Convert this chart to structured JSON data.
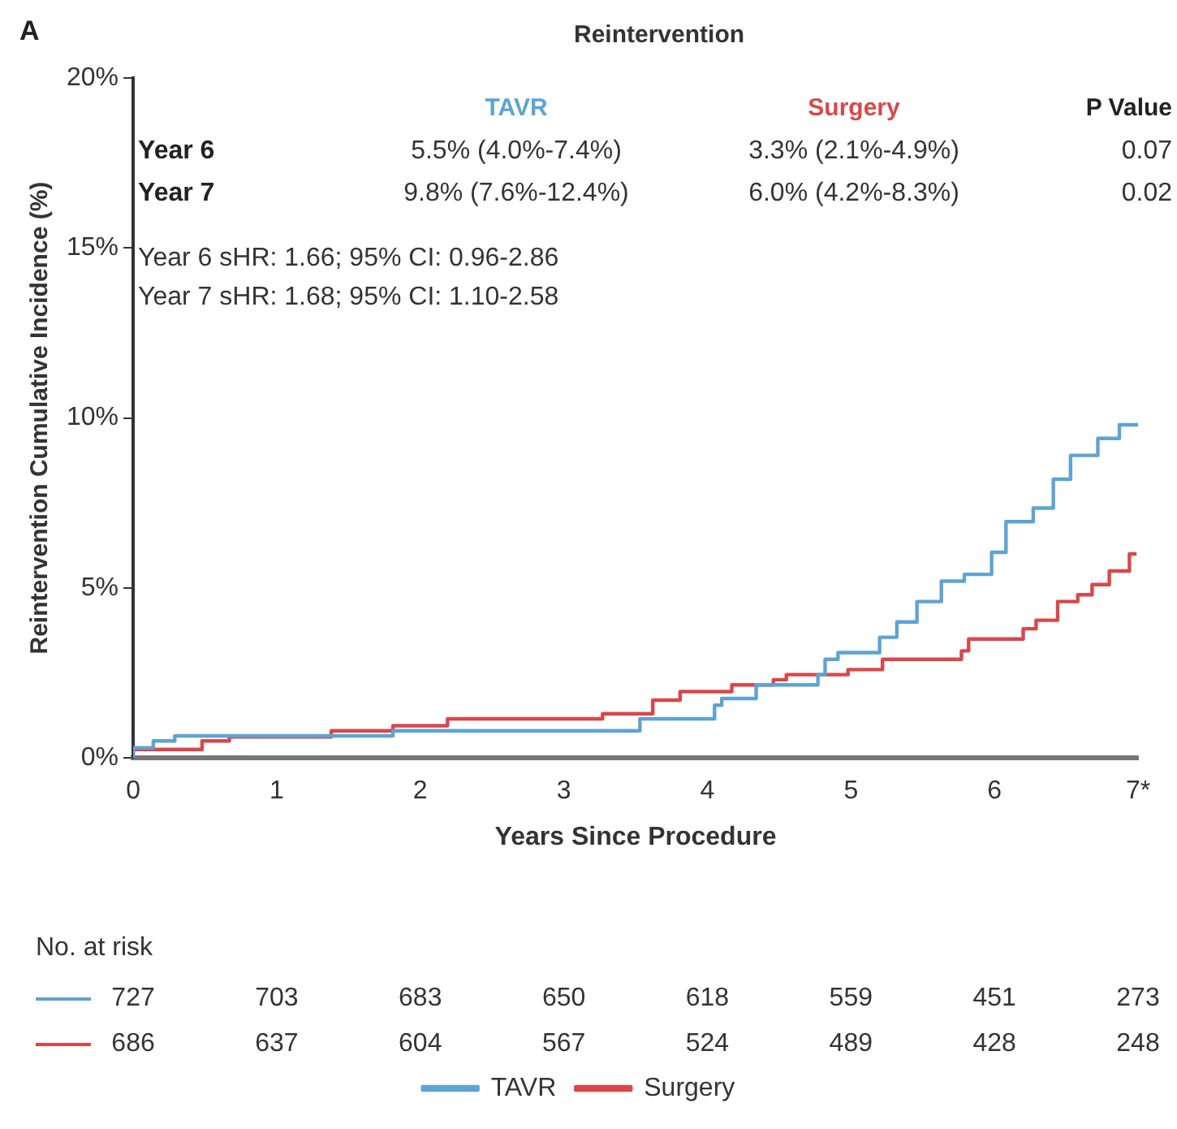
{
  "chart_data": {
    "type": "step",
    "title": "Reintervention",
    "xlabel": "Years Since Procedure",
    "ylabel": "Reintervention Cumulative Incidence (%)",
    "xlim": [
      0,
      7
    ],
    "xticks": [
      0,
      1,
      2,
      3,
      4,
      5,
      6,
      {
        "value": 7,
        "label": "7*"
      }
    ],
    "ylim": [
      0,
      20
    ],
    "yticks": [
      {
        "value": 0,
        "label": "0%"
      },
      {
        "value": 5,
        "label": "5%"
      },
      {
        "value": 10,
        "label": "10%"
      },
      {
        "value": 15,
        "label": "15%"
      },
      {
        "value": 20,
        "label": "20%"
      }
    ],
    "grid": false,
    "legend": "bottom",
    "marker": "none",
    "series": [
      {
        "name": "TAVR",
        "color": "#5ea3d3",
        "x": [
          0,
          0.14,
          0.29,
          1.81,
          3.53,
          4.05,
          4.1,
          4.34,
          4.77,
          4.82,
          4.91,
          5.2,
          5.32,
          5.46,
          5.63,
          5.79,
          5.98,
          6.08,
          6.27,
          6.41,
          6.53,
          6.72,
          6.87,
          7.0
        ],
        "values": [
          0,
          0.3,
          0.5,
          0.65,
          0.8,
          1.15,
          1.55,
          1.75,
          2.15,
          2.45,
          2.9,
          3.1,
          3.55,
          4.0,
          4.6,
          5.2,
          5.4,
          6.05,
          6.95,
          7.35,
          8.2,
          8.9,
          9.4,
          9.8
        ]
      },
      {
        "name": "Surgery",
        "color": "#d9474a",
        "x": [
          0,
          0.48,
          0.67,
          1.38,
          1.81,
          2.19,
          3.27,
          3.62,
          3.81,
          4.17,
          4.46,
          4.55,
          4.98,
          5.22,
          5.77,
          5.82,
          6.2,
          6.29,
          6.44,
          6.58,
          6.68,
          6.8,
          6.94,
          6.99
        ],
        "values": [
          0,
          0.25,
          0.5,
          0.62,
          0.8,
          0.95,
          1.15,
          1.3,
          1.7,
          1.95,
          2.15,
          2.3,
          2.45,
          2.6,
          2.9,
          3.15,
          3.5,
          3.8,
          4.05,
          4.6,
          4.8,
          5.1,
          5.5,
          6.0
        ]
      }
    ],
    "annotations": [
      "A",
      "TAVR",
      "Surgery",
      "P Value",
      "Year 6",
      "5.5% (4.0%-7.4%)",
      "3.3% (2.1%-4.9%)",
      "0.07",
      "Year 7",
      "9.8% (7.6%-12.4%)",
      "6.0% (4.2%-8.3%)",
      "0.02",
      "Year 6 sHR: 1.66; 95% CI: 0.96-2.86",
      "Year 7 sHR: 1.68; 95% CI: 1.10-2.58",
      "No. at risk",
      "727",
      "703",
      "683",
      "650",
      "618",
      "559",
      "451",
      "273",
      "686",
      "637",
      "604",
      "567",
      "524",
      "489",
      "428",
      "248"
    ]
  }
}
